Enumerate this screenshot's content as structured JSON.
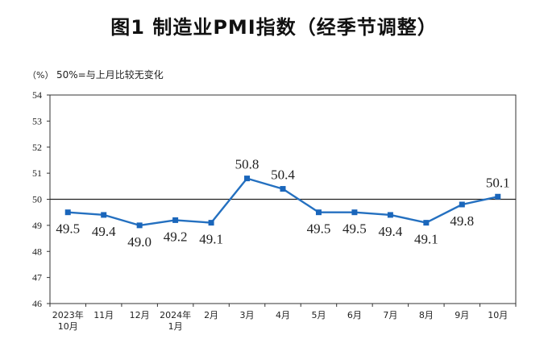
{
  "title": "图1  制造业PMI指数（经季节调整）",
  "unit": "（%）",
  "note": "50%=与上月比较无变化",
  "colors": {
    "line": "#2470c0",
    "marker": "#1a66bb",
    "reference": "#222222",
    "frame": "#333333"
  },
  "chart_data": {
    "type": "line",
    "categories": [
      [
        "2023年",
        "10月"
      ],
      [
        "11月"
      ],
      [
        "12月"
      ],
      [
        "2024年",
        "1月"
      ],
      [
        "2月"
      ],
      [
        "3月"
      ],
      [
        "4月"
      ],
      [
        "5月"
      ],
      [
        "6月"
      ],
      [
        "7月"
      ],
      [
        "8月"
      ],
      [
        "9月"
      ],
      [
        "10月"
      ]
    ],
    "series": [
      {
        "values": [
          49.5,
          49.4,
          49.0,
          49.2,
          49.1,
          50.8,
          50.4,
          49.5,
          49.5,
          49.4,
          49.1,
          49.8,
          50.1
        ]
      }
    ],
    "data_labels": [
      "49.5",
      "49.4",
      "49.0",
      "49.2",
      "49.1",
      "50.8",
      "50.4",
      "49.5",
      "49.5",
      "49.4",
      "49.1",
      "49.8",
      "50.1"
    ],
    "ylim": [
      46,
      54
    ],
    "yticks": [
      46,
      47,
      48,
      49,
      50,
      51,
      52,
      53,
      54
    ],
    "reference_line": 50,
    "grid": false,
    "marker": "square"
  }
}
